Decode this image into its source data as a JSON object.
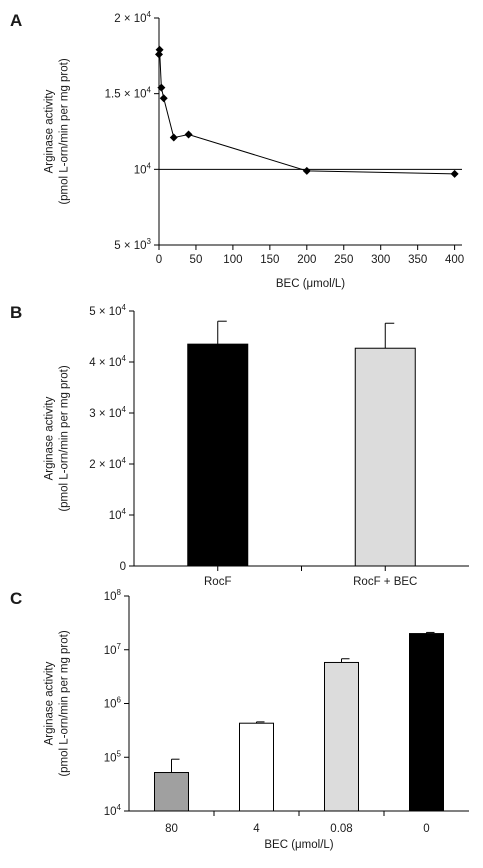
{
  "chart_data": [
    {
      "panel": "A",
      "type": "line",
      "xlabel": "BEC (μmol/L)",
      "ylabel": [
        "Arginase activity",
        "(pmol L-orn/min per mg prot)"
      ],
      "xlim": [
        0,
        410
      ],
      "ylim": [
        5000,
        20000
      ],
      "xticks": [
        0,
        50,
        100,
        150,
        200,
        250,
        300,
        350,
        400
      ],
      "yticks": [
        {
          "value": 20000,
          "label": "2 × 10",
          "exp": "4"
        },
        {
          "value": 15000,
          "label": "1.5 × 10",
          "exp": "4"
        },
        {
          "value": 10000,
          "label": "10",
          "exp": "4"
        },
        {
          "value": 5000,
          "label": "5 × 10",
          "exp": "3"
        }
      ],
      "reference_line": 10000,
      "marker": "diamond",
      "x": [
        0,
        0.8,
        3.2,
        6.4,
        20,
        40,
        200,
        400
      ],
      "y": [
        17600,
        17900,
        15400,
        14700,
        12100,
        12300,
        9900,
        9700
      ]
    },
    {
      "panel": "B",
      "type": "bar",
      "ylabel": [
        "Arginase activity",
        "(pmol L-orn/min per mg prot)"
      ],
      "categories": [
        "RocF",
        "RocF + BEC"
      ],
      "values": [
        43500,
        42700
      ],
      "errors": [
        4500,
        4900
      ],
      "colors": [
        "#000000",
        "#dcdcdc"
      ],
      "ylim": [
        0,
        50000
      ],
      "yticks": [
        {
          "value": 50000,
          "label": "5 × 10",
          "exp": "4"
        },
        {
          "value": 40000,
          "label": "4 × 10",
          "exp": "4"
        },
        {
          "value": 30000,
          "label": "3 × 10",
          "exp": "4"
        },
        {
          "value": 20000,
          "label": "2 × 10",
          "exp": "4"
        },
        {
          "value": 10000,
          "label": "10",
          "exp": "4"
        },
        {
          "value": 0,
          "label": "0",
          "exp": ""
        }
      ]
    },
    {
      "panel": "C",
      "type": "bar",
      "log_scale": true,
      "xlabel": "BEC (μmol/L)",
      "ylabel": [
        "Arginase activity",
        "(pmol L-orn/min per mg prot)"
      ],
      "categories": [
        "80",
        "4",
        "0.08",
        "0"
      ],
      "values": [
        52000,
        430000,
        5800000,
        20000000
      ],
      "error_upper": [
        92000,
        455000,
        6800000,
        21000000
      ],
      "colors": [
        "#a0a0a0",
        "#ffffff",
        "#dcdcdc",
        "#000000"
      ],
      "ylim": [
        10000,
        100000000
      ],
      "yticks": [
        {
          "value": 100000000,
          "label": "10",
          "exp": "8"
        },
        {
          "value": 10000000,
          "label": "10",
          "exp": "7"
        },
        {
          "value": 1000000,
          "label": "10",
          "exp": "6"
        },
        {
          "value": 100000,
          "label": "10",
          "exp": "5"
        },
        {
          "value": 10000,
          "label": "10",
          "exp": "4"
        }
      ]
    }
  ]
}
